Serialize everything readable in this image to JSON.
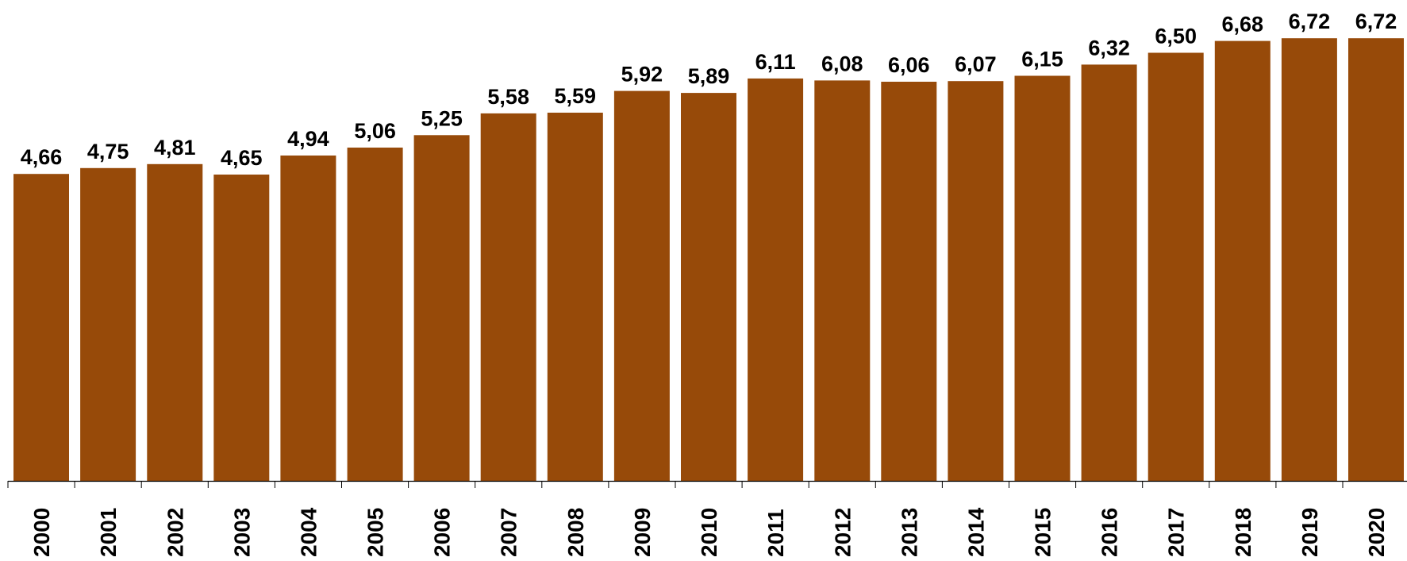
{
  "chart_data": {
    "type": "bar",
    "categories": [
      "2000",
      "2001",
      "2002",
      "2003",
      "2004",
      "2005",
      "2006",
      "2007",
      "2008",
      "2009",
      "2010",
      "2011",
      "2012",
      "2013",
      "2014",
      "2015",
      "2016",
      "2017",
      "2018",
      "2019",
      "2020"
    ],
    "values": [
      4.66,
      4.75,
      4.81,
      4.65,
      4.94,
      5.06,
      5.25,
      5.58,
      5.59,
      5.92,
      5.89,
      6.11,
      6.08,
      6.06,
      6.07,
      6.15,
      6.32,
      6.5,
      6.68,
      6.72,
      6.72
    ],
    "value_labels": [
      "4,66",
      "4,75",
      "4,81",
      "4,65",
      "4,94",
      "5,06",
      "5,25",
      "5,58",
      "5,59",
      "5,92",
      "5,89",
      "6,11",
      "6,08",
      "6,06",
      "6,07",
      "6,15",
      "6,32",
      "6,50",
      "6,68",
      "6,72",
      "6,72"
    ],
    "title": "",
    "xlabel": "",
    "ylabel": "",
    "ylim": [
      0,
      7.3
    ],
    "grid": false,
    "legend": "none",
    "bar_color": "#974A09",
    "axis_color": "#000000"
  }
}
